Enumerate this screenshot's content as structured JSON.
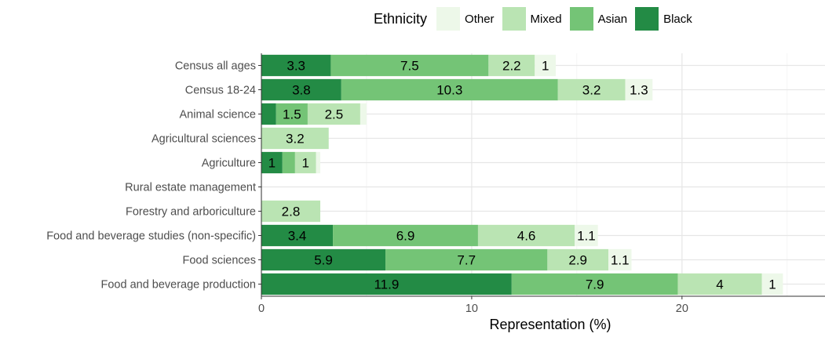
{
  "chart_data": {
    "type": "bar",
    "orientation": "horizontal",
    "stacked": true,
    "xlabel": "Representation (%)",
    "xlim": [
      0,
      26.8
    ],
    "xticks": [
      0,
      10,
      20
    ],
    "grid": true,
    "legend": {
      "title": "Ethnicity",
      "position": "top",
      "entries": [
        "Other",
        "Mixed",
        "Asian",
        "Black"
      ]
    },
    "categories": [
      "Census all ages",
      "Census 18-24",
      "Animal science",
      "Agricultural sciences",
      "Agriculture",
      "Rural estate management",
      "Forestry and arboriculture",
      "Food and beverage studies (non-specific)",
      "Food sciences",
      "Food and beverage production"
    ],
    "series": [
      {
        "name": "Black",
        "color": "#238b45",
        "values": [
          3.3,
          3.8,
          0.7,
          0,
          1,
          0,
          0,
          3.4,
          5.9,
          11.9
        ],
        "labels": [
          "3.3",
          "3.8",
          "",
          "",
          "1",
          "",
          "",
          "3.4",
          "5.9",
          "11.9"
        ]
      },
      {
        "name": "Asian",
        "color": "#74c476",
        "values": [
          7.5,
          10.3,
          1.5,
          0,
          0.6,
          0,
          0,
          6.9,
          7.7,
          7.9
        ],
        "labels": [
          "7.5",
          "10.3",
          "1.5",
          "",
          "",
          "",
          "",
          "6.9",
          "7.7",
          "7.9"
        ]
      },
      {
        "name": "Mixed",
        "color": "#bae4b3",
        "values": [
          2.2,
          3.2,
          2.5,
          3.2,
          1,
          0,
          2.8,
          4.6,
          2.9,
          4
        ],
        "labels": [
          "2.2",
          "3.2",
          "2.5",
          "3.2",
          "1",
          "",
          "2.8",
          "4.6",
          "2.9",
          "4"
        ]
      },
      {
        "name": "Other",
        "color": "#edf8e9",
        "values": [
          1,
          1.3,
          0.3,
          0,
          0.2,
          0,
          0,
          1.1,
          1.1,
          1
        ],
        "labels": [
          "1",
          "1.3",
          "",
          "",
          "",
          "",
          "",
          "1.1",
          "1.1",
          "1"
        ]
      }
    ]
  }
}
